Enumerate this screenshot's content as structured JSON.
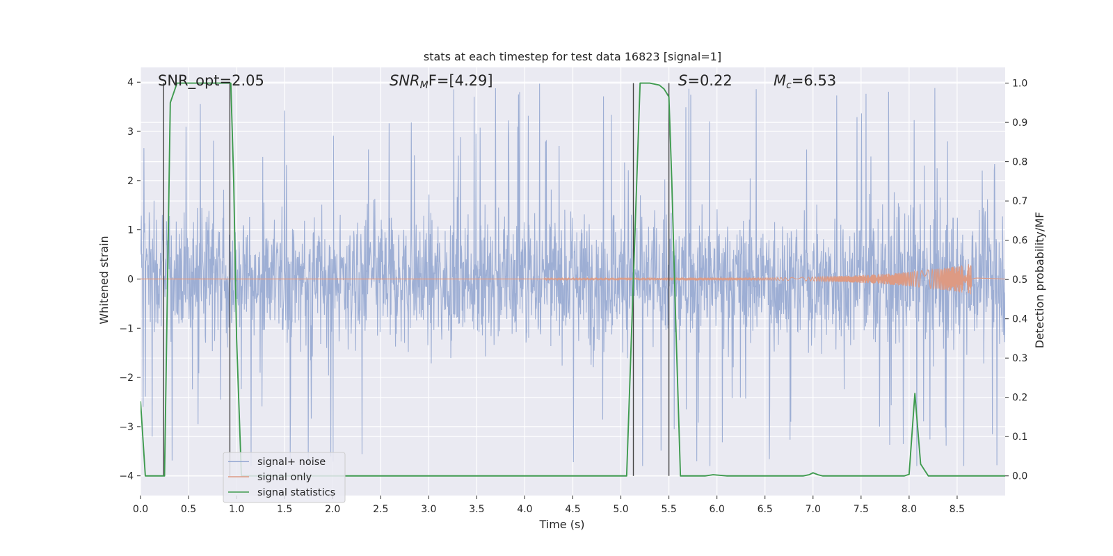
{
  "chart_data": {
    "type": "line",
    "title": "stats at each timestep for test data 16823 [signal=1]",
    "xlabel": "Time (s)",
    "ylabel": "Whitened strain",
    "y2label": "Detection probability/MF",
    "xlim": [
      0,
      9.0
    ],
    "ylim": [
      -4.4,
      4.3
    ],
    "y2lim": [
      -0.05,
      1.04
    ],
    "xticks": [
      "0.0",
      "0.5",
      "1.0",
      "1.5",
      "2.0",
      "2.5",
      "3.0",
      "3.5",
      "4.0",
      "4.5",
      "5.0",
      "5.5",
      "6.0",
      "6.5",
      "7.0",
      "7.5",
      "8.0",
      "8.5"
    ],
    "yticks": [
      "4",
      "3",
      "2",
      "1",
      "0",
      "−1",
      "−2",
      "−3",
      "−4"
    ],
    "y2ticks": [
      "1.0",
      "0.9",
      "0.8",
      "0.7",
      "0.6",
      "0.5",
      "0.4",
      "0.3",
      "0.2",
      "0.1",
      "0.0"
    ],
    "grid": true,
    "legend_position": "lower-left",
    "annotations": {
      "snr_opt": "SNR_opt=2.05",
      "snr_mf_main": "SNR",
      "snr_mf_sub": "M",
      "snr_mf_rest": "F=[4.29]",
      "s_main": "S",
      "s_rest": "=0.22",
      "mc_main": "M",
      "mc_sub": "c",
      "mc_rest": "=6.53"
    },
    "series": [
      {
        "name": "signal+ noise",
        "color": "#8fa3cf",
        "axis": "left",
        "noise_envelope": {
          "typical_min": -2.0,
          "typical_max": 2.0,
          "peak_max": 4.0,
          "peak_min": -3.8
        }
      },
      {
        "name": "signal only",
        "color": "#dd9a83",
        "axis": "left",
        "chirp": {
          "t_start": 4.2,
          "t_end": 8.65,
          "peak_amplitude": 0.3
        }
      },
      {
        "name": "signal statistics",
        "color": "#3f9b4f",
        "axis": "right",
        "x": [
          0.0,
          0.05,
          0.1,
          0.15,
          0.2,
          0.25,
          0.31,
          0.38,
          0.45,
          0.6,
          0.75,
          0.9,
          0.94,
          0.97,
          1.0,
          1.05,
          1.2,
          1.5,
          2.0,
          3.0,
          4.0,
          5.0,
          5.06,
          5.13,
          5.2,
          5.3,
          5.4,
          5.45,
          5.5,
          5.53,
          5.57,
          5.62,
          5.7,
          5.8,
          5.88,
          5.96,
          6.1,
          6.5,
          6.9,
          6.96,
          7.0,
          7.05,
          7.1,
          7.5,
          7.95,
          8.0,
          8.06,
          8.12,
          8.2,
          8.5,
          9.0
        ],
        "y": [
          0.19,
          0.0,
          0.0,
          0.0,
          0.0,
          0.0,
          0.95,
          1.0,
          1.0,
          1.0,
          1.0,
          1.0,
          1.0,
          0.75,
          0.35,
          0.0,
          0.0,
          0.0,
          0.0,
          0.0,
          0.0,
          0.0,
          0.0,
          0.5,
          1.0,
          1.0,
          0.995,
          0.985,
          0.965,
          0.75,
          0.4,
          0.0,
          0.0,
          0.0,
          0.0,
          0.003,
          0.0,
          0.0,
          0.0,
          0.003,
          0.008,
          0.003,
          0.0,
          0.0,
          0.0,
          0.004,
          0.21,
          0.03,
          0.0,
          0.0,
          0.0
        ]
      }
    ],
    "vertical_markers": [
      0.24,
      0.93,
      5.13,
      5.5
    ]
  },
  "legend": {
    "items": [
      "signal+ noise",
      "signal only",
      "signal statistics"
    ]
  }
}
